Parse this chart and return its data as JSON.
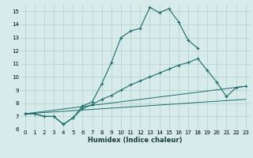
{
  "xlabel": "Humidex (Indice chaleur)",
  "bg_color": "#d7ecea",
  "grid_color": "#b8d4d0",
  "line_color": "#1a6b6b",
  "xlim": [
    -0.5,
    23.5
  ],
  "ylim": [
    6,
    15.5
  ],
  "xticks": [
    0,
    1,
    2,
    3,
    4,
    5,
    6,
    7,
    8,
    9,
    10,
    11,
    12,
    13,
    14,
    15,
    16,
    17,
    18,
    19,
    20,
    21,
    22,
    23
  ],
  "yticks": [
    6,
    7,
    8,
    9,
    10,
    11,
    12,
    13,
    14,
    15
  ],
  "lines": [
    {
      "x": [
        0,
        1,
        2,
        3,
        4,
        5,
        6,
        7,
        8,
        9,
        10,
        11,
        12,
        13,
        14,
        15,
        16,
        17,
        18
      ],
      "y": [
        7.2,
        7.2,
        7.0,
        7.0,
        6.4,
        6.9,
        7.8,
        8.1,
        9.5,
        11.1,
        13.0,
        13.5,
        13.7,
        15.3,
        14.9,
        15.2,
        14.2,
        12.8,
        12.2
      ],
      "marker": true
    },
    {
      "x": [
        0,
        1,
        2,
        3,
        4,
        5,
        6,
        7,
        8,
        9,
        10,
        11,
        12,
        13,
        14,
        15,
        16,
        17,
        18,
        19,
        20,
        21,
        22,
        23
      ],
      "y": [
        7.2,
        7.2,
        7.0,
        7.0,
        6.4,
        6.9,
        7.6,
        7.9,
        8.3,
        8.6,
        9.0,
        9.4,
        9.7,
        10.0,
        10.3,
        10.6,
        10.9,
        11.1,
        11.4,
        10.5,
        9.6,
        8.5,
        9.2,
        9.3
      ],
      "marker": true
    },
    {
      "x": [
        0,
        23
      ],
      "y": [
        7.2,
        8.3
      ],
      "marker": false
    },
    {
      "x": [
        0,
        23
      ],
      "y": [
        7.2,
        9.3
      ],
      "marker": false
    }
  ]
}
